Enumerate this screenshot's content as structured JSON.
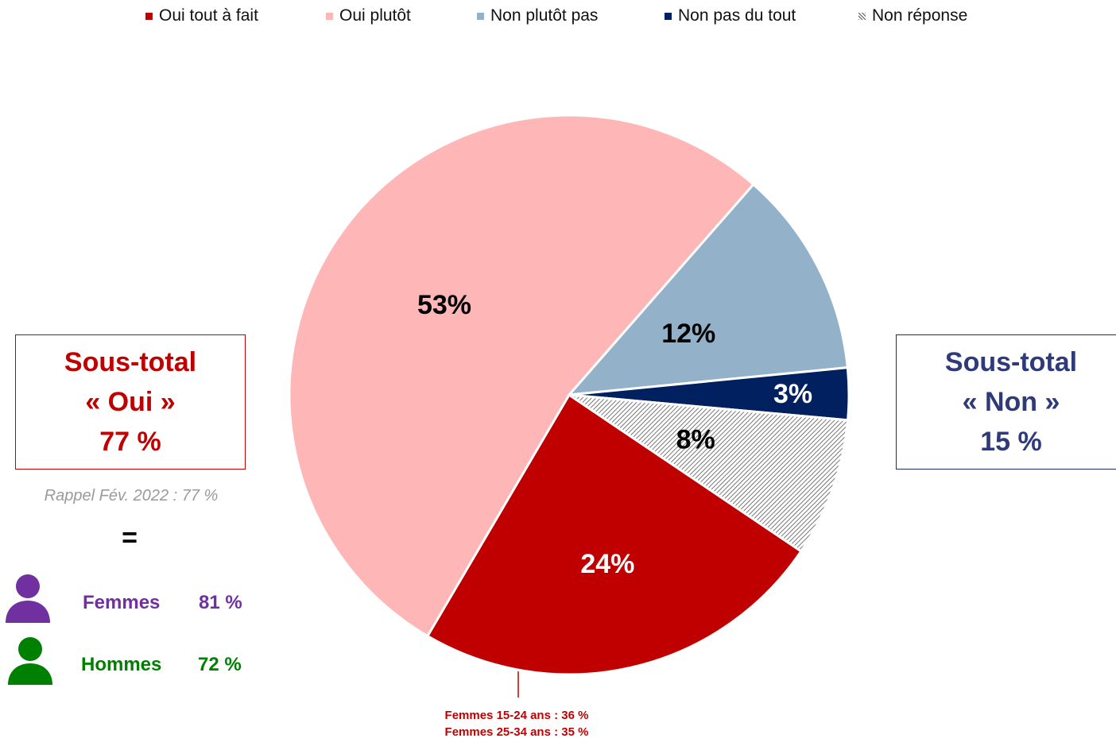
{
  "chart_data": {
    "type": "pie",
    "categories": [
      "Oui tout à fait",
      "Oui plutôt",
      "Non plutôt pas",
      "Non pas du tout",
      "Non réponse"
    ],
    "values": [
      24,
      53,
      12,
      3,
      8
    ],
    "data_labels": [
      "24%",
      "53%",
      "12%",
      "3%",
      "8%"
    ],
    "colors": [
      "#c00000",
      "#ffb6b6",
      "#93b1c9",
      "#002060",
      "hatch"
    ],
    "label_colors": [
      "#ffffff",
      "#000000",
      "#000000",
      "#ffffff",
      "#000000"
    ],
    "legend_position": "top"
  },
  "legend": [
    {
      "label": "Oui tout à fait",
      "color": "#c00000",
      "pattern": "solid"
    },
    {
      "label": "Oui plutôt",
      "color": "#ffb6b6",
      "pattern": "solid"
    },
    {
      "label": "Non plutôt pas",
      "color": "#93b1c9",
      "pattern": "solid"
    },
    {
      "label": "Non pas du tout",
      "color": "#002060",
      "pattern": "solid"
    },
    {
      "label": "Non réponse",
      "color": "#555555",
      "pattern": "hatch"
    }
  ],
  "subtotal_oui": {
    "line1": "Sous-total",
    "line2": "« Oui »",
    "line3": "77 %"
  },
  "subtotal_non": {
    "line1": "Sous-total",
    "line2": "« Non »",
    "line3": "15 %"
  },
  "rappel": "Rappel Fév. 2022 : 77 %",
  "equals_sign": "=",
  "genders": {
    "femmes": {
      "label": "Femmes",
      "value": "81 %",
      "color": "#7030a0"
    },
    "hommes": {
      "label": "Hommes",
      "value": "72 %",
      "color": "#008000"
    }
  },
  "annotation": {
    "line1": "Femmes 15-24 ans : 36 %",
    "line2": "Femmes 25-34 ans : 35 %"
  }
}
